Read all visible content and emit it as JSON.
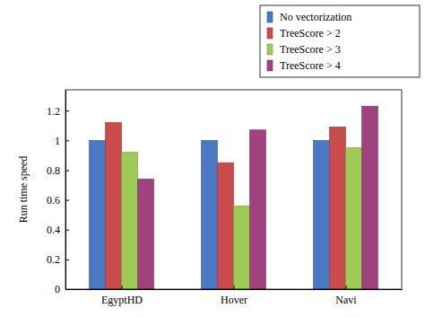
{
  "chart_data": {
    "type": "bar",
    "categories": [
      "EgyptHD",
      "Hover",
      "Navi"
    ],
    "series": [
      {
        "name": "No vectorization",
        "color": "#4a78c4",
        "values": [
          1,
          1,
          1
        ]
      },
      {
        "name": "TreeScore > 2",
        "color": "#c94b4b",
        "values": [
          1.12,
          0.85,
          1.09
        ]
      },
      {
        "name": "TreeScore > 3",
        "color": "#9ccc55",
        "values": [
          0.92,
          0.56,
          0.95
        ]
      },
      {
        "name": "TreeScore > 4",
        "color": "#a0427d",
        "values": [
          0.74,
          1.07,
          1.23
        ]
      }
    ],
    "y_label": "Run time speed",
    "ylim": [
      0,
      1.34
    ],
    "yticks": [
      0,
      0.2,
      0.4,
      0.6,
      0.8,
      1,
      1.2
    ],
    "legend": "upper right"
  }
}
